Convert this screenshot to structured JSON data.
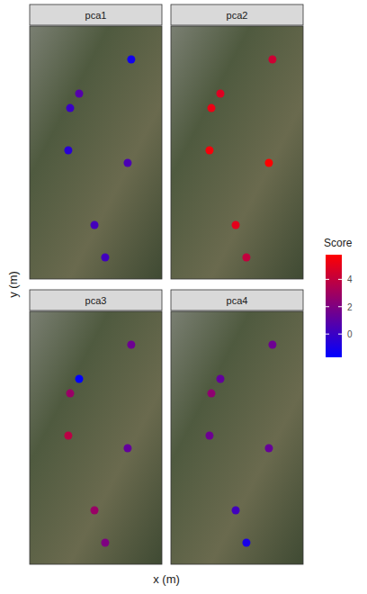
{
  "chart_data": {
    "type": "scatter",
    "x_label": "x (m)",
    "y_label": "y (m)",
    "tick_labels": false,
    "xlim": [
      0,
      1000
    ],
    "ylim": [
      0,
      1900
    ],
    "x": [
      768,
      374,
      306,
      292,
      741,
      490,
      571
    ],
    "y": [
      1650,
      1393,
      1284,
      967,
      872,
      406,
      162
    ],
    "panels": [
      {
        "title": "pca1",
        "values": [
          -1.2,
          0.8,
          0.0,
          -0.5,
          0.5,
          0.3,
          0.2
        ]
      },
      {
        "title": "pca2",
        "values": [
          4.3,
          4.8,
          5.2,
          5.5,
          5.8,
          5.0,
          4.0
        ]
      },
      {
        "title": "pca3",
        "values": [
          1.5,
          -1.7,
          2.8,
          3.8,
          1.2,
          2.8,
          2.0
        ]
      },
      {
        "title": "pca4",
        "values": [
          1.5,
          1.2,
          2.5,
          1.5,
          1.3,
          0.2,
          -1.0
        ]
      }
    ],
    "colorbar": {
      "title": "Score",
      "range": [
        -1.7,
        5.8
      ],
      "ticks": [
        0,
        2,
        4
      ],
      "colors": [
        "#0000ff",
        "#ff0000"
      ]
    }
  }
}
